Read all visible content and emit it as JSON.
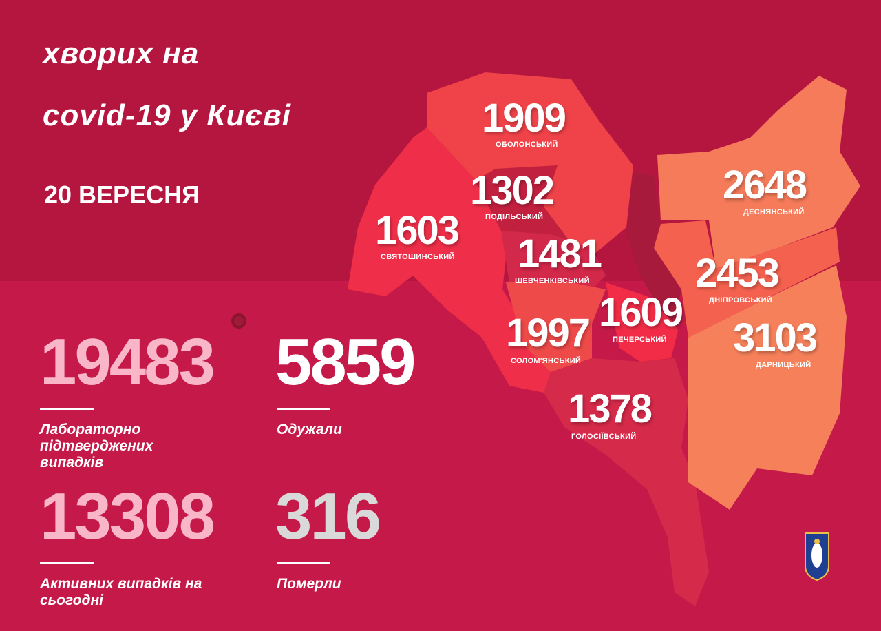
{
  "header": {
    "title_line1": "хворих на",
    "title_line2": "covid-19 у Києві",
    "date": "20 ВЕРЕСНЯ"
  },
  "stats": [
    {
      "value": "19483",
      "label": "Лабораторно підтверджених випадків",
      "color": "#f8b6c8"
    },
    {
      "value": "5859",
      "label": "Одужали",
      "color": "#ffffff"
    },
    {
      "value": "13308",
      "label": "Активних випадків на сьогодні",
      "color": "#f8b6c8"
    },
    {
      "value": "316",
      "label": "Померли",
      "color": "#d9d9d9"
    }
  ],
  "districts": [
    {
      "name": "ОБОЛОНСЬКИЙ",
      "cases": "1909",
      "color": "#ef4349"
    },
    {
      "name": "ПОДІЛЬСЬКИЙ",
      "cases": "1302",
      "color": "#c2203f"
    },
    {
      "name": "СВЯТОШИНСЬКИЙ",
      "cases": "1603",
      "color": "#ef2f49"
    },
    {
      "name": "ШЕВЧЕНКІВСЬКИЙ",
      "cases": "1481",
      "color": "#d2284a"
    },
    {
      "name": "ДЕСНЯНСЬКИЙ",
      "cases": "2648",
      "color": "#f57b5a"
    },
    {
      "name": "ДНІПРОВСЬКИЙ",
      "cases": "2453",
      "color": "#f4614f"
    },
    {
      "name": "СОЛОМ'ЯНСЬКИЙ",
      "cases": "1997",
      "color": "#ef4a4a"
    },
    {
      "name": "ПЕЧЕРСЬКИЙ",
      "cases": "1609",
      "color": "#f22c47"
    },
    {
      "name": "ДАРНИЦЬКИЙ",
      "cases": "3103",
      "color": "#f5805a"
    },
    {
      "name": "ГОЛОСІЇВСЬКИЙ",
      "cases": "1378",
      "color": "#d62a4a"
    }
  ]
}
